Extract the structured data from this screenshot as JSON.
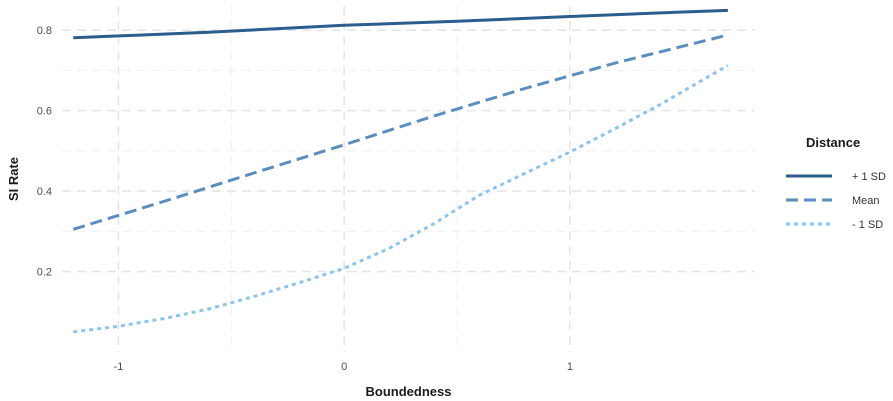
{
  "chart_data": {
    "type": "line",
    "xlabel": "Boundedness",
    "ylabel": "SI Rate",
    "xlim": [
      -1.25,
      1.82
    ],
    "ylim": [
      0.0,
      0.86
    ],
    "x_ticks": [
      -1,
      0,
      1
    ],
    "x_tick_labels": [
      "-1",
      "0",
      "1"
    ],
    "y_ticks": [
      0.2,
      0.4,
      0.6,
      0.8
    ],
    "y_tick_labels": [
      "0.2",
      "0.4",
      "0.6",
      "0.8"
    ],
    "grid": true,
    "legend": {
      "title": "Distance",
      "placement": "right"
    },
    "series": [
      {
        "name": "+ 1 SD",
        "color": "#2b5d8f",
        "dash": "solid",
        "points": [
          [
            -1.2,
            0.781
          ],
          [
            -0.6,
            0.795
          ],
          [
            0.0,
            0.812
          ],
          [
            0.5,
            0.822
          ],
          [
            1.0,
            0.834
          ],
          [
            1.5,
            0.845
          ],
          [
            1.7,
            0.849
          ]
        ]
      },
      {
        "name": "Mean",
        "color": "#5b8ec0",
        "dash": "dashed",
        "points": [
          [
            -1.2,
            0.305
          ],
          [
            -0.8,
            0.374
          ],
          [
            -0.4,
            0.445
          ],
          [
            0.0,
            0.515
          ],
          [
            0.4,
            0.587
          ],
          [
            0.8,
            0.655
          ],
          [
            1.2,
            0.718
          ],
          [
            1.7,
            0.788
          ]
        ]
      },
      {
        "name": "- 1 SD",
        "color": "#8ec4ea",
        "dash": "dotted",
        "points": [
          [
            -1.2,
            0.05
          ],
          [
            -1.0,
            0.064
          ],
          [
            -0.8,
            0.083
          ],
          [
            -0.6,
            0.107
          ],
          [
            -0.4,
            0.138
          ],
          [
            -0.2,
            0.172
          ],
          [
            0.0,
            0.208
          ],
          [
            0.2,
            0.258
          ],
          [
            0.4,
            0.32
          ],
          [
            0.6,
            0.39
          ],
          [
            0.8,
            0.444
          ],
          [
            1.0,
            0.497
          ],
          [
            1.2,
            0.555
          ],
          [
            1.4,
            0.615
          ],
          [
            1.6,
            0.68
          ],
          [
            1.7,
            0.712
          ]
        ]
      }
    ]
  }
}
